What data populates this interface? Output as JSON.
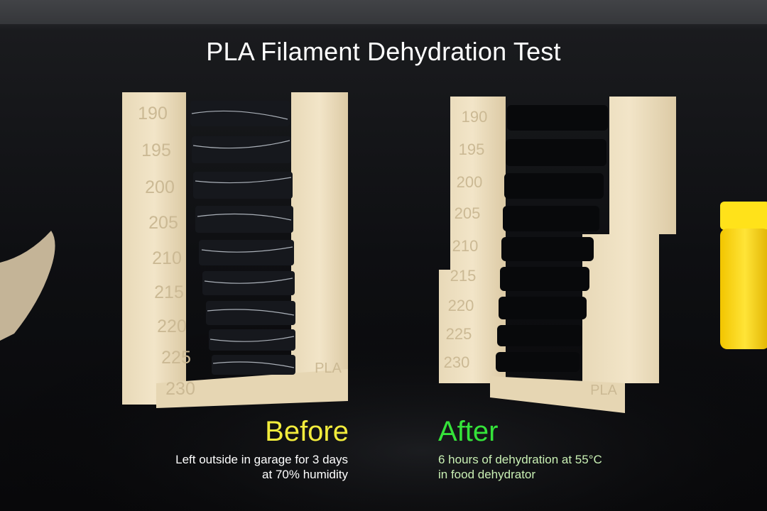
{
  "title": "PLA Filament Dehydration Test",
  "before": {
    "heading": "Before",
    "line1": "Left outside in garage for 3 days",
    "line2": "at 70% humidity"
  },
  "after": {
    "heading": "After",
    "line1": "6 hours of dehydration at 55°C",
    "line2": "in food dehydrator"
  },
  "tower_labels": [
    "190",
    "195",
    "200",
    "205",
    "210",
    "215",
    "220",
    "225",
    "230"
  ],
  "tower_brand": "PLA",
  "colors": {
    "title": "#ffffff",
    "before_heading": "#f2ec3c",
    "after_heading": "#35e33a",
    "before_body": "#ffffff",
    "after_body": "#c9f0b4",
    "filament": "#efe2c4"
  }
}
